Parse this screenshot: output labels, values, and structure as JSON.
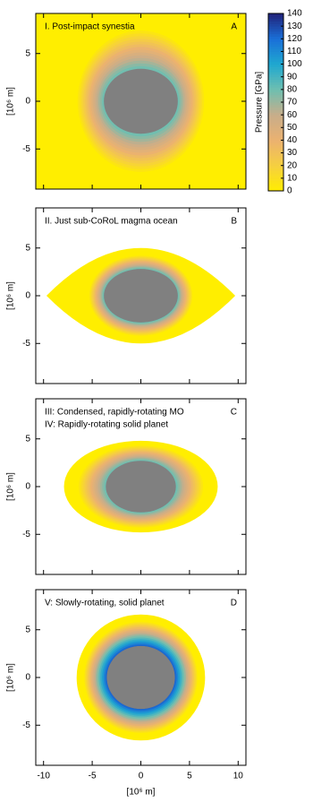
{
  "chart_data": [
    {
      "type": "contour",
      "title": "I. Post-impact synestia",
      "label": "A",
      "ylabel": "[10⁶ m]",
      "xlim": [
        -10.8,
        10.8
      ],
      "ylim": [
        -9.2,
        9.2
      ],
      "xticks": [
        -10,
        -5,
        0,
        5,
        10
      ],
      "yticks": [
        -5,
        0,
        5
      ],
      "shape": "box",
      "envelope": [
        10.8,
        9.2
      ],
      "colored": [
        6.5,
        7.4
      ],
      "core": [
        3.8,
        3.4
      ],
      "core_pressure": 85
    },
    {
      "type": "contour",
      "title": "II. Just sub-CoRoL magma ocean",
      "label": "B",
      "ylabel": "[10⁶ m]",
      "xlim": [
        -10.8,
        10.8
      ],
      "ylim": [
        -9.2,
        9.2
      ],
      "xticks": [
        -10,
        -5,
        0,
        5,
        10
      ],
      "yticks": [
        -5,
        0,
        5
      ],
      "shape": "lens",
      "envelope": [
        9.7,
        5.0
      ],
      "colored": [
        5.3,
        4.2
      ],
      "core": [
        3.8,
        2.8
      ],
      "core_pressure": 85
    },
    {
      "type": "contour",
      "title": "III: Condensed, rapidly-rotating MO",
      "subtitle": "IV: Rapidly-rotating solid planet",
      "label": "C",
      "ylabel": "[10⁶ m]",
      "xlim": [
        -10.8,
        10.8
      ],
      "ylim": [
        -9.2,
        9.2
      ],
      "xticks": [
        -10,
        -5,
        0,
        5,
        10
      ],
      "yticks": [
        -5,
        0,
        5
      ],
      "shape": "ellipse",
      "envelope": [
        7.9,
        4.8
      ],
      "colored": [
        6.4,
        4.3
      ],
      "core": [
        3.6,
        2.7
      ],
      "core_pressure": 85
    },
    {
      "type": "contour",
      "title": "V: Slowly-rotating, solid planet",
      "label": "D",
      "ylabel": "[10⁶ m]",
      "xlabel": "[10⁶ m]",
      "xlim": [
        -10.8,
        10.8
      ],
      "ylim": [
        -9.2,
        9.2
      ],
      "xticks": [
        -10,
        -5,
        0,
        5,
        10
      ],
      "yticks": [
        -5,
        0,
        5
      ],
      "shape": "ellipse",
      "envelope": [
        6.6,
        6.6
      ],
      "colored": [
        5.8,
        5.8
      ],
      "core": [
        3.5,
        3.3
      ],
      "core_pressure": 130
    },
    {
      "type": "colorbar",
      "label": "Pressure [GPa]",
      "ylim": [
        0,
        140
      ],
      "yticks": [
        0,
        10,
        20,
        30,
        40,
        50,
        60,
        70,
        80,
        90,
        100,
        110,
        120,
        130,
        140
      ],
      "colors": [
        "#ffee00",
        "#f6cf40",
        "#ebb270",
        "#c8ad8a",
        "#6fbfb0",
        "#1fa8d0",
        "#1a6fd8",
        "#21237a"
      ]
    }
  ]
}
